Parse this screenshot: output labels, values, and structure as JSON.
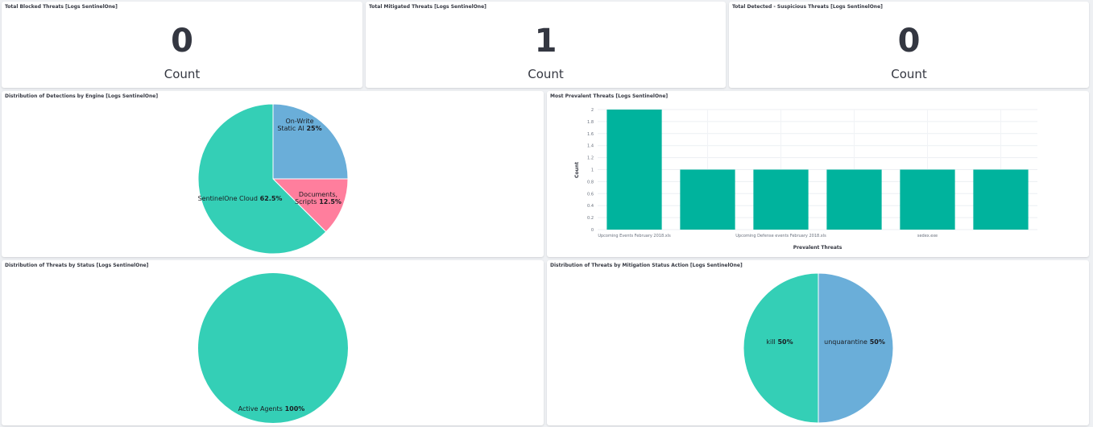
{
  "metrics": [
    {
      "title": "Total Blocked Threats [Logs SentinelOne]",
      "value": "0",
      "label": "Count"
    },
    {
      "title": "Total Mitigated Threats [Logs SentinelOne]",
      "value": "1",
      "label": "Count"
    },
    {
      "title": "Total Detected - Suspicious Threats [Logs SentinelOne]",
      "value": "0",
      "label": "Count"
    }
  ],
  "engine_panel": {
    "title": "Distribution of Detections by Engine [Logs SentinelOne]"
  },
  "prevalent_panel": {
    "title": "Most Prevalent Threats [Logs SentinelOne]"
  },
  "status_panel": {
    "title": "Distribution of Threats by Status [Logs SentinelOne]"
  },
  "mitigation_panel": {
    "title": "Distribution of Threats by Mitigation Status Action [Logs SentinelOne]"
  },
  "chart_data": [
    {
      "type": "pie",
      "title": "Distribution of Detections by Engine [Logs SentinelOne]",
      "slices": [
        {
          "label_lines": [
            "On-Write",
            "Static AI"
          ],
          "value": 25,
          "pct_text": "25%",
          "color": "#6aaed9"
        },
        {
          "label_lines": [
            "Documents,",
            "Scripts"
          ],
          "value": 12.5,
          "pct_text": "12.5%",
          "color": "#ff7e9d"
        },
        {
          "label_lines": [
            "SentinelOne Cloud"
          ],
          "value": 62.5,
          "pct_text": "62.5%",
          "color": "#34cfb6"
        }
      ]
    },
    {
      "type": "bar",
      "title": "Most Prevalent Threats [Logs SentinelOne]",
      "xlabel": "Prevalent Threats",
      "ylabel": "Count",
      "ylim": [
        0,
        2
      ],
      "yticks": [
        "0",
        "0.2",
        "0.4",
        "0.6",
        "0.8",
        "1",
        "1.2",
        "1.4",
        "1.6",
        "1.8",
        "2"
      ],
      "tick_labels": [
        "Upcoming Events February 2018.xls",
        "Upcoming Defense events February 2018.xls",
        "sedex.exe"
      ],
      "values": [
        2,
        1,
        1,
        1,
        1,
        1
      ],
      "grid": true,
      "color": "#00b39d"
    },
    {
      "type": "pie",
      "title": "Distribution of Threats by Status [Logs SentinelOne]",
      "slices": [
        {
          "label_lines": [
            "Active Agents"
          ],
          "value": 100,
          "pct_text": "100%",
          "color": "#34cfb6"
        }
      ]
    },
    {
      "type": "pie",
      "title": "Distribution of Threats by Mitigation Status Action [Logs SentinelOne]",
      "slices": [
        {
          "label_lines": [
            "unquarantine"
          ],
          "value": 50,
          "pct_text": "50%",
          "color": "#6aaed9"
        },
        {
          "label_lines": [
            "kill"
          ],
          "value": 50,
          "pct_text": "50%",
          "color": "#34cfb6"
        }
      ]
    }
  ]
}
